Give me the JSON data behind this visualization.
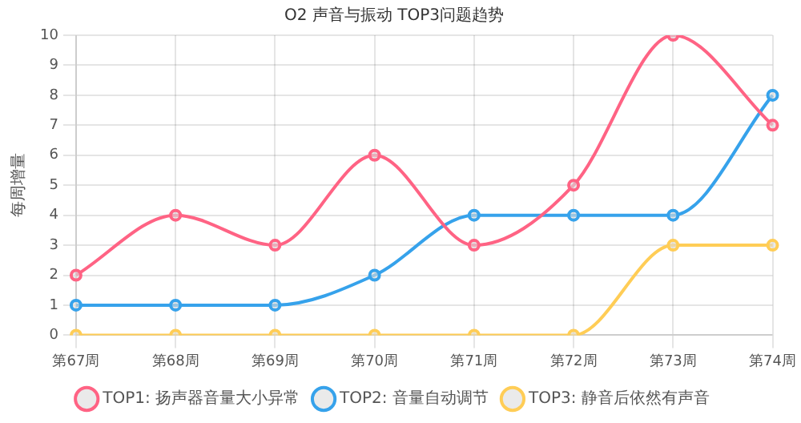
{
  "chart_data": {
    "type": "line",
    "title": "O2 声音与振动 TOP3问题趋势",
    "ylabel": "每周增量",
    "categories": [
      "第67周",
      "第68周",
      "第69周",
      "第70周",
      "第71周",
      "第72周",
      "第73周",
      "第74周"
    ],
    "series": [
      {
        "name": "TOP1: 扬声器音量大小异常",
        "color": "#ff6384",
        "values": [
          2,
          4,
          3,
          6,
          3,
          5,
          10,
          7
        ]
      },
      {
        "name": "TOP2: 音量自动调节",
        "color": "#36a2eb",
        "values": [
          1,
          1,
          1,
          2,
          4,
          4,
          4,
          8
        ]
      },
      {
        "name": "TOP3: 静音后依然有声音",
        "color": "#ffcd56",
        "values": [
          0,
          0,
          0,
          0,
          0,
          0,
          3,
          3
        ]
      }
    ],
    "ylim": [
      0,
      10
    ],
    "yticks": [
      0,
      1,
      2,
      3,
      4,
      5,
      6,
      7,
      8,
      9,
      10
    ],
    "grid": true,
    "legend": "bottom",
    "marker": "circle",
    "line_style": "solid"
  }
}
